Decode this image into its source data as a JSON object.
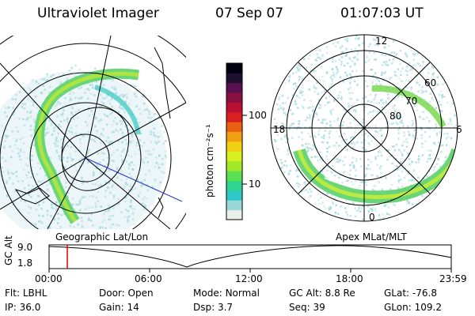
{
  "header": {
    "instrument": "Ultraviolet Imager",
    "date": "07 Sep 07",
    "time": "01:07:03 UT"
  },
  "colorbar": {
    "unit_label": "photon cm⁻²s⁻¹",
    "ticks": [
      "100",
      "10"
    ],
    "colors": [
      "#e8eee8",
      "#9ad8d8",
      "#2fc8c8",
      "#30d690",
      "#5ae050",
      "#a0e828",
      "#d8f020",
      "#f0d010",
      "#f0a010",
      "#e86010",
      "#d82020",
      "#b81030",
      "#8a1040",
      "#5a1050",
      "#201030",
      "#000010"
    ]
  },
  "geo_map": {
    "caption": "Geographic Lat/Lon"
  },
  "mag_map": {
    "caption": "Apex MLat/MLT",
    "mlt_labels": [
      "12",
      "18",
      "6",
      "0"
    ],
    "lat_labels": [
      "60",
      "70",
      "80"
    ]
  },
  "altitude_plot": {
    "y_label": "GC Alt",
    "y_ticks": [
      "9.0",
      "1.8"
    ],
    "x_ticks": [
      "00:00",
      "06:00",
      "12:00",
      "18:00",
      "23:59"
    ]
  },
  "status": {
    "row1": [
      {
        "label": "Flt:",
        "value": "LBHL"
      },
      {
        "label": "Door:",
        "value": "Open"
      },
      {
        "label": "Mode:",
        "value": "Normal"
      },
      {
        "label": "GC Alt:",
        "value": "8.8 Re"
      },
      {
        "label": "GLat:",
        "value": "-76.8"
      }
    ],
    "row2": [
      {
        "label": "IP:",
        "value": "36.0"
      },
      {
        "label": "Gain:",
        "value": "14"
      },
      {
        "label": "Dsp:",
        "value": "3.7"
      },
      {
        "label": "Seq:",
        "value": "39"
      },
      {
        "label": "GLon:",
        "value": "109.2"
      }
    ]
  }
}
